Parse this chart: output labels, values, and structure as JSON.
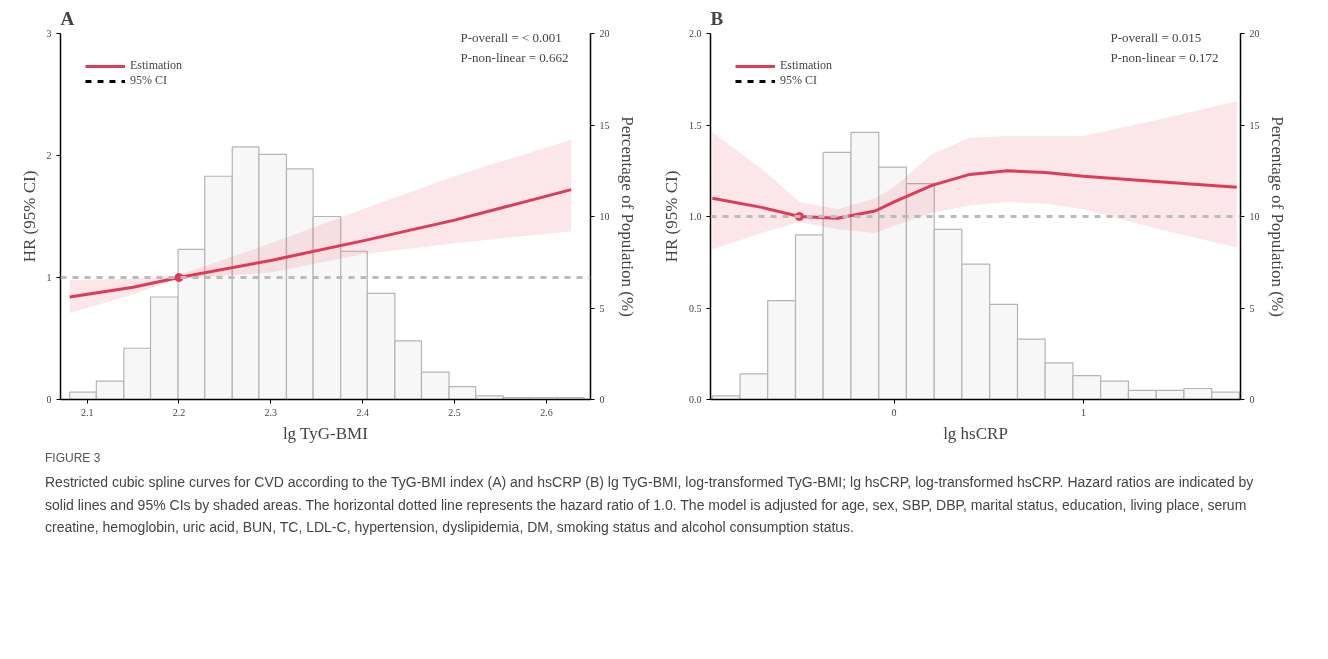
{
  "chart_data": [
    {
      "type": "line",
      "title": "A",
      "xlabel": "lg TyG-BMI",
      "ylabel": "HR (95% CI)",
      "y2label": "Percentage of Population (%)",
      "xlim": [
        2.071,
        2.648
      ],
      "xticks": [
        2.1,
        2.2,
        2.3,
        2.4,
        2.5,
        2.6
      ],
      "ylim": [
        0,
        3
      ],
      "yticks": [
        0,
        1,
        2,
        3
      ],
      "y2lim": [
        0,
        20
      ],
      "y2ticks": [
        0,
        5,
        10,
        15,
        20
      ],
      "grid": false,
      "legend": "top left",
      "annotations": [
        "P-overall = < 0.001",
        "P-non-linear = 0.662",
        "FIGURE 3",
        "Restricted cubic spline curves for CVD according to the TyG-BMI index (A) and hsCRP (B) lg TyG-BMI, log-transformed TyG-BMI; lg hsCRP, log-transformed hsCRP. Hazard ratios are indicated by solid lines and 95% CIs by shaded areas. The horizontal dotted line represents the hazard ratio of 1.0. The model is adjusted for age, sex, SBP, DBP, marital status, education, living place, serum creatine, hemoglobin, uric acid, BUN, TC, LDL-C, hypertension, dyslipidemia, DM, smoking status and alcohol consumption status."
      ],
      "ref_lines": [
        {
          "axis": "y",
          "value": 1,
          "label": null,
          "color": "#bbbbbb",
          "line_style": "dashed"
        }
      ],
      "series": [
        {
          "type": "histogram",
          "axis": "y2",
          "color": "#f8f7f8",
          "bins": [
            2.081,
            2.11,
            2.14,
            2.169,
            2.199,
            2.228,
            2.258,
            2.287,
            2.317,
            2.346,
            2.376,
            2.405,
            2.435,
            2.464,
            2.494,
            2.523,
            2.553,
            2.582,
            2.612,
            2.641
          ],
          "values": [
            0.4,
            1.0,
            2.8,
            5.6,
            8.2,
            12.2,
            13.8,
            13.4,
            12.6,
            10.0,
            8.1,
            5.8,
            3.2,
            1.5,
            0.7,
            0.2,
            0.1,
            0.1,
            0.1
          ]
        },
        {
          "name": "Estimation",
          "color": "#e03a57",
          "line_style": "solid",
          "marker": "none",
          "x": [
            2.081,
            2.15,
            2.2,
            2.3,
            2.4,
            2.5,
            2.627
          ],
          "values": [
            0.84,
            0.92,
            1.0,
            1.14,
            1.3,
            1.47,
            1.72
          ],
          "lower": [
            0.71,
            0.86,
            0.99,
            1.04,
            1.19,
            1.28,
            1.38
          ],
          "upper": [
            0.98,
            0.99,
            1.02,
            1.28,
            1.56,
            1.83,
            2.13
          ]
        },
        {
          "name": "95% CI",
          "color": "#000000",
          "line_style": "dashed",
          "marker": "none"
        },
        {
          "type": "scatter",
          "color": "#e03a57",
          "marker": "circle",
          "x": [
            2.2
          ],
          "values": [
            1.0
          ]
        }
      ]
    },
    {
      "type": "line",
      "title": "B",
      "xlabel": "lg hsCRP",
      "ylabel": "HR (95% CI)",
      "y2label": "Percentage of Population (%)",
      "xlim": [
        -0.97,
        1.83
      ],
      "xticks": [
        0,
        1
      ],
      "ylim": [
        0,
        2
      ],
      "yticks": [
        {
          "value": 0,
          "label": "0.0"
        },
        {
          "value": 0.5,
          "label": "0.5"
        },
        {
          "value": 1,
          "label": "1.0"
        },
        {
          "value": 1.5,
          "label": "1.5"
        },
        {
          "value": 2,
          "label": "2.0"
        }
      ],
      "y2lim": [
        0,
        20
      ],
      "y2ticks": [
        0,
        5,
        10,
        15,
        20
      ],
      "grid": false,
      "legend": "top left",
      "annotations": [
        "P-overall = 0.015",
        "P-non-linear = 0.172"
      ],
      "ref_lines": [
        {
          "axis": "y",
          "value": 1,
          "label": null,
          "color": "#bbbbbb",
          "line_style": "dashed"
        }
      ],
      "series": [
        {
          "type": "histogram",
          "axis": "y2",
          "color": "#f8f7f8",
          "bins": [
            -0.961,
            -0.814,
            -0.668,
            -0.521,
            -0.375,
            -0.228,
            -0.081,
            0.065,
            0.212,
            0.358,
            0.505,
            0.652,
            0.798,
            0.945,
            1.091,
            1.238,
            1.385,
            1.531,
            1.678,
            1.824
          ],
          "values": [
            0.2,
            1.4,
            5.4,
            9.0,
            13.5,
            14.6,
            12.7,
            11.8,
            9.3,
            7.4,
            5.2,
            3.3,
            2.0,
            1.3,
            1.0,
            0.5,
            0.5,
            0.6,
            0.4
          ]
        },
        {
          "name": "Estimation",
          "color": "#e03a57",
          "line_style": "solid",
          "marker": "none",
          "x": [
            -0.96,
            -0.7,
            -0.5,
            -0.3,
            -0.1,
            0,
            0.2,
            0.4,
            0.6,
            0.8,
            1.0,
            1.4,
            1.81
          ],
          "values": [
            1.1,
            1.05,
            1.0,
            0.99,
            1.03,
            1.08,
            1.17,
            1.23,
            1.25,
            1.24,
            1.22,
            1.19,
            1.16
          ],
          "lower": [
            0.82,
            0.91,
            0.97,
            0.93,
            0.91,
            0.95,
            1.02,
            1.06,
            1.08,
            1.07,
            1.04,
            0.93,
            0.83
          ],
          "upper": [
            1.46,
            1.26,
            1.08,
            1.04,
            1.1,
            1.16,
            1.34,
            1.43,
            1.44,
            1.44,
            1.44,
            1.53,
            1.63
          ]
        },
        {
          "name": "95% CI",
          "color": "#000000",
          "line_style": "dashed",
          "marker": "none"
        },
        {
          "type": "scatter",
          "color": "#e03a57",
          "marker": "circle",
          "x": [
            -0.5
          ],
          "values": [
            1.0
          ]
        }
      ]
    }
  ]
}
